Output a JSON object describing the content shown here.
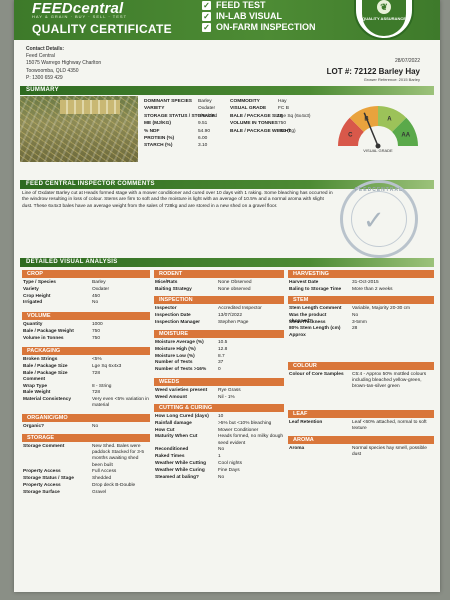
{
  "header": {
    "brand": "FEEDcentral",
    "brand_sub": "HAY & GRAIN · BUY · SELL · TEST",
    "title": "QUALITY CERTIFICATE",
    "checks": [
      "FEED TEST",
      "IN-LAB VISUAL",
      "ON-FARM INSPECTION"
    ],
    "seal_text": "QUALITY ASSURANCE"
  },
  "contact": {
    "label": "Contact Details:",
    "lines": [
      "Feed Central",
      "15075 Warrego Highway Charlton",
      "Toowoomba, QLD 4350",
      "P: 1300 659 429"
    ]
  },
  "lot": {
    "date": "28/07/2022",
    "title": "LOT #: 72122 Barley Hay",
    "grower": "Grower Reference: 2015 Barley"
  },
  "summary": {
    "heading": "SUMMARY",
    "left": [
      {
        "k": "DOMINANT SPECIES",
        "v": "Barley"
      },
      {
        "k": "VARIETY",
        "v": "Oxdater"
      },
      {
        "k": "STORAGE STATUS / STORAGE",
        "v": "Shedded"
      },
      {
        "k": "ME (MJ/KG)",
        "v": "9.51"
      },
      {
        "k": "% NDF",
        "v": "54.90"
      },
      {
        "k": "PROTEIN (%)",
        "v": "6.00"
      },
      {
        "k": "STARCH (%)",
        "v": "3.10"
      }
    ],
    "right": [
      {
        "k": "COMMODITY",
        "v": "Hay"
      },
      {
        "k": "VISUAL GRADE",
        "v": "FC B"
      },
      {
        "k": "BALE / PACKAGE SIZE",
        "v": "Lge Sq (6x4x3)"
      },
      {
        "k": "VOLUME IN TONNES",
        "v": "750"
      },
      {
        "k": "BALE / PACKAGE WEIGHT",
        "v": "750 (kg)"
      }
    ],
    "gauge": {
      "grades": [
        "C",
        "B",
        "A",
        "AA"
      ],
      "label": "VISUAL GRADE",
      "selected": "B"
    }
  },
  "comments": {
    "heading": "FEED CENTRAL INSPECTOR COMMENTS",
    "text": "Line of Oxdater Barley cut at Heads formed stage with a mower conditioner and cured over 10 days with 1 raking. Some bleaching has occurred in the windrow resulting in loss of colour. Stems are firm to soft and the moisture is light with an average of 10.5% and a normal aroma with slight dust. These 6x4x3 bales have an average weight from the sales of 728kg and are stored in a new shed on a gravel floor.",
    "watermark": "FEEDCENTRAL"
  },
  "analysis": {
    "heading": "DETAILED VISUAL ANALYSIS",
    "crop": {
      "title": "CROP",
      "rows": [
        {
          "k": "Type / Species",
          "v": "Barley"
        },
        {
          "k": "Variety",
          "v": "Oxdater"
        },
        {
          "k": "Crop Height",
          "v": "450"
        },
        {
          "k": "Irrigated",
          "v": "No"
        }
      ]
    },
    "volume": {
      "title": "VOLUME",
      "rows": [
        {
          "k": "Quantity",
          "v": "1000"
        },
        {
          "k": "Bale / Package Weight",
          "v": "750"
        },
        {
          "k": "Volume in Tonnes",
          "v": "750"
        }
      ]
    },
    "packaging": {
      "title": "PACKAGING",
      "rows": [
        {
          "k": "Broken Strings",
          "v": "<5%"
        },
        {
          "k": "Bale / Package Size",
          "v": "Lge Sq 6x4x3"
        },
        {
          "k": "Bale / Package Size Comment",
          "v": "728"
        },
        {
          "k": "Wrap Type",
          "v": "8 - String"
        },
        {
          "k": "Bale Weight",
          "v": "728"
        },
        {
          "k": "Material Consistency",
          "v": "Very even <5% variation in material"
        }
      ]
    },
    "organic": {
      "title": "ORGANIC/GMO",
      "rows": [
        {
          "k": "Organic?",
          "v": "No"
        }
      ]
    },
    "storage": {
      "title": "STORAGE",
      "rows": [
        {
          "k": "Storage Comment",
          "v": "New Shed. Bales were paddock Stacked for 3-5 months awaiting shed been built"
        },
        {
          "k": "Property Access",
          "v": "Full Access"
        },
        {
          "k": "Storage Status / Stage",
          "v": "Shedded"
        },
        {
          "k": "Property Access",
          "v": "Drop deck B-Double"
        },
        {
          "k": "Storage Surface",
          "v": "Gravel"
        }
      ]
    },
    "rodent": {
      "title": "RODENT",
      "rows": [
        {
          "k": "Mice/Rats",
          "v": "None Observed"
        },
        {
          "k": "Baiting Strategy",
          "v": "None observed"
        }
      ]
    },
    "inspection": {
      "title": "INSPECTION",
      "rows": [
        {
          "k": "Inspector",
          "v": "Accredited Inspector"
        },
        {
          "k": "Inspection Date",
          "v": "13/07/2022"
        },
        {
          "k": "Inspection Manager",
          "v": "Stephen Page"
        }
      ]
    },
    "moisture": {
      "title": "MOISTURE",
      "rows": [
        {
          "k": "Moisture Average (%)",
          "v": "10.5"
        },
        {
          "k": "Moisture High (%)",
          "v": "12.8"
        },
        {
          "k": "Moisture Low (%)",
          "v": "8.7"
        },
        {
          "k": "Number of Tests",
          "v": "37"
        },
        {
          "k": "Number of Tests >16%",
          "v": "0"
        }
      ]
    },
    "weeds": {
      "title": "WEEDS",
      "rows": [
        {
          "k": "Weed varieties present",
          "v": "Rye Grass"
        },
        {
          "k": "Weed Amount",
          "v": "Nil - 1%"
        }
      ]
    },
    "cutting": {
      "title": "CUTTING & CURING",
      "rows": [
        {
          "k": "How Long Cured (days)",
          "v": "10"
        },
        {
          "k": "Rainfall damage",
          "v": ">5% but <10% bleaching"
        },
        {
          "k": "How Cut",
          "v": "Mower Conditioner"
        },
        {
          "k": "Maturity When Cut",
          "v": "Heads formed, no milky dough seed evident"
        },
        {
          "k": "Reconditioned",
          "v": "No"
        },
        {
          "k": "Raked Times",
          "v": "1"
        },
        {
          "k": "Weather While Cutting",
          "v": "Cool nights"
        },
        {
          "k": "Weather While Curing",
          "v": "Fine Days"
        },
        {
          "k": "Steamed at baling?",
          "v": "No"
        }
      ]
    },
    "harvesting": {
      "title": "HARVESTING",
      "rows": [
        {
          "k": "Harvest Date",
          "v": "31-Oct-2015"
        },
        {
          "k": "Baling to Storage Time",
          "v": "More than 2 weeks"
        }
      ]
    },
    "stem": {
      "title": "STEM",
      "rows": [
        {
          "k": "Stem Length Comment",
          "v": "Variable, Majority 20-30 cm"
        },
        {
          "k": "Was the product chopped?",
          "v": "No"
        },
        {
          "k": "Stem Thickness",
          "v": "3-5mm"
        },
        {
          "k": "80% Stem Length (cm) Approx",
          "v": "28"
        }
      ]
    },
    "colour": {
      "title": "COLOUR",
      "rows": [
        {
          "k": "Colour of Core Samples",
          "v": "C5:4 - Approx 50% mottled colours including bleached yellow-green, brown-tan-silver green"
        }
      ]
    },
    "leaf": {
      "title": "LEAF",
      "rows": [
        {
          "k": "Leaf Retention",
          "v": "Leaf <60% attached, normal to soft texture"
        }
      ]
    },
    "aroma": {
      "title": "AROMA",
      "rows": [
        {
          "k": "Aroma",
          "v": "Normal species hay smell, possible dust"
        }
      ]
    }
  }
}
